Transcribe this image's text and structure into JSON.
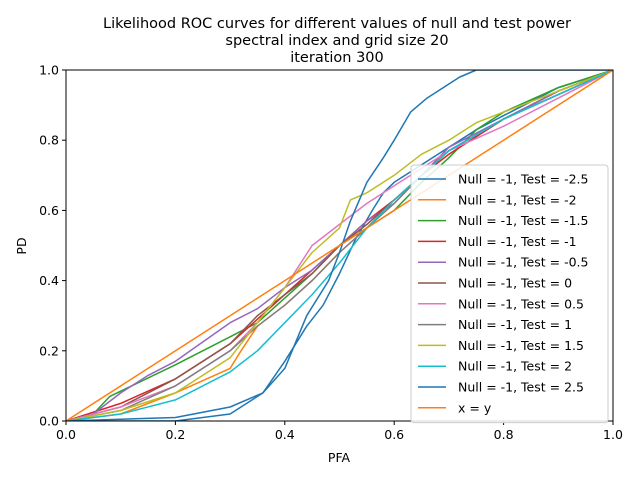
{
  "chart_data": {
    "type": "line",
    "title_lines": [
      "Likelihood ROC curves for different values of null and test power",
      "spectral index and grid size 20",
      "iteration 300"
    ],
    "xlabel": "PFA",
    "ylabel": "PD",
    "xlim": [
      0,
      1
    ],
    "ylim": [
      0,
      1
    ],
    "x_ticks": [
      "0.0",
      "0.2",
      "0.4",
      "0.6",
      "0.8",
      "1.0"
    ],
    "y_ticks": [
      "0.0",
      "0.2",
      "0.4",
      "0.6",
      "0.8",
      "1.0"
    ],
    "grid": false,
    "legend_position": "center-right",
    "series": [
      {
        "name": "Null = -1, Test = -2.5",
        "color": "#1f77b4",
        "x": [
          0,
          0.2,
          0.3,
          0.36,
          0.4,
          0.44,
          0.47,
          0.5,
          0.53,
          0.56,
          0.58,
          0.6,
          0.65,
          0.7,
          0.75,
          0.8,
          0.9,
          1
        ],
        "y": [
          0,
          0,
          0.02,
          0.08,
          0.17,
          0.27,
          0.33,
          0.42,
          0.52,
          0.6,
          0.65,
          0.68,
          0.73,
          0.78,
          0.83,
          0.87,
          0.95,
          1
        ]
      },
      {
        "name": "Null = -1, Test = -2",
        "color": "#ff7f0e",
        "x": [
          0,
          0.1,
          0.2,
          0.3,
          0.32,
          0.35,
          0.4,
          0.45,
          0.5,
          0.55,
          0.6,
          0.65,
          0.7,
          0.8,
          0.9,
          1
        ],
        "y": [
          0,
          0.02,
          0.08,
          0.15,
          0.2,
          0.27,
          0.33,
          0.4,
          0.48,
          0.55,
          0.63,
          0.7,
          0.76,
          0.86,
          0.94,
          1
        ]
      },
      {
        "name": "Null = -1, Test = -1.5",
        "color": "#2ca02c",
        "x": [
          0,
          0.05,
          0.08,
          0.12,
          0.2,
          0.3,
          0.35,
          0.4,
          0.45,
          0.5,
          0.55,
          0.6,
          0.65,
          0.7,
          0.75,
          0.8,
          0.9,
          1
        ],
        "y": [
          0,
          0.02,
          0.07,
          0.1,
          0.16,
          0.24,
          0.28,
          0.35,
          0.42,
          0.5,
          0.55,
          0.6,
          0.68,
          0.75,
          0.83,
          0.88,
          0.95,
          1
        ]
      },
      {
        "name": "Null = -1, Test = -1",
        "color": "#d62728",
        "x": [
          0,
          0.1,
          0.2,
          0.3,
          0.4,
          0.45,
          0.5,
          0.55,
          0.6,
          0.65,
          0.7,
          0.8,
          0.9,
          1
        ],
        "y": [
          0,
          0.05,
          0.12,
          0.22,
          0.36,
          0.43,
          0.5,
          0.57,
          0.63,
          0.7,
          0.76,
          0.86,
          0.94,
          1
        ]
      },
      {
        "name": "Null = -1, Test = -0.5",
        "color": "#9467bd",
        "x": [
          0,
          0.05,
          0.1,
          0.15,
          0.2,
          0.3,
          0.35,
          0.4,
          0.45,
          0.5,
          0.55,
          0.6,
          0.65,
          0.7,
          0.8,
          0.9,
          1
        ],
        "y": [
          0,
          0.02,
          0.08,
          0.13,
          0.17,
          0.28,
          0.32,
          0.38,
          0.43,
          0.5,
          0.57,
          0.62,
          0.7,
          0.78,
          0.86,
          0.94,
          1
        ]
      },
      {
        "name": "Null = -1, Test = 0",
        "color": "#8c564b",
        "x": [
          0,
          0.1,
          0.2,
          0.3,
          0.35,
          0.4,
          0.45,
          0.5,
          0.55,
          0.6,
          0.65,
          0.7,
          0.8,
          0.9,
          1
        ],
        "y": [
          0,
          0.04,
          0.12,
          0.22,
          0.3,
          0.36,
          0.42,
          0.5,
          0.56,
          0.63,
          0.7,
          0.77,
          0.86,
          0.93,
          1
        ]
      },
      {
        "name": "Null = -1, Test = 0.5",
        "color": "#e377c2",
        "x": [
          0,
          0.1,
          0.2,
          0.3,
          0.35,
          0.4,
          0.45,
          0.5,
          0.55,
          0.6,
          0.65,
          0.7,
          0.8,
          0.9,
          1
        ],
        "y": [
          0,
          0.04,
          0.1,
          0.2,
          0.28,
          0.38,
          0.5,
          0.56,
          0.62,
          0.67,
          0.72,
          0.77,
          0.84,
          0.92,
          1
        ]
      },
      {
        "name": "Null = -1, Test = 1",
        "color": "#7f7f7f",
        "x": [
          0,
          0.1,
          0.2,
          0.3,
          0.35,
          0.4,
          0.45,
          0.5,
          0.55,
          0.6,
          0.65,
          0.7,
          0.8,
          0.9,
          1
        ],
        "y": [
          0,
          0.03,
          0.1,
          0.2,
          0.27,
          0.33,
          0.4,
          0.48,
          0.55,
          0.62,
          0.7,
          0.77,
          0.86,
          0.93,
          1
        ]
      },
      {
        "name": "Null = -1, Test = 1.5",
        "color": "#bcbd22",
        "x": [
          0,
          0.1,
          0.2,
          0.3,
          0.35,
          0.4,
          0.45,
          0.5,
          0.52,
          0.55,
          0.6,
          0.65,
          0.7,
          0.75,
          0.8,
          0.9,
          1
        ],
        "y": [
          0,
          0.03,
          0.08,
          0.18,
          0.28,
          0.38,
          0.48,
          0.55,
          0.63,
          0.65,
          0.7,
          0.76,
          0.8,
          0.85,
          0.88,
          0.94,
          1
        ]
      },
      {
        "name": "Null = -1, Test = 2",
        "color": "#17becf",
        "x": [
          0,
          0.1,
          0.2,
          0.3,
          0.35,
          0.4,
          0.45,
          0.5,
          0.55,
          0.6,
          0.65,
          0.7,
          0.8,
          0.9,
          1
        ],
        "y": [
          0,
          0.02,
          0.06,
          0.14,
          0.2,
          0.28,
          0.36,
          0.45,
          0.55,
          0.63,
          0.7,
          0.77,
          0.86,
          0.93,
          1
        ]
      },
      {
        "name": "Null = -1, Test = 2.5",
        "color": "#1f77b4",
        "x": [
          0,
          0.2,
          0.3,
          0.36,
          0.4,
          0.44,
          0.48,
          0.5,
          0.52,
          0.55,
          0.58,
          0.6,
          0.63,
          0.66,
          0.7,
          0.72,
          0.75,
          0.8,
          0.85,
          0.9,
          1
        ],
        "y": [
          0,
          0.01,
          0.04,
          0.08,
          0.15,
          0.3,
          0.4,
          0.48,
          0.57,
          0.68,
          0.75,
          0.8,
          0.88,
          0.92,
          0.96,
          0.98,
          1,
          1,
          1,
          1,
          1
        ]
      },
      {
        "name": "x = y",
        "color": "#ff7f0e",
        "x": [
          0,
          1
        ],
        "y": [
          0,
          1
        ]
      }
    ]
  }
}
